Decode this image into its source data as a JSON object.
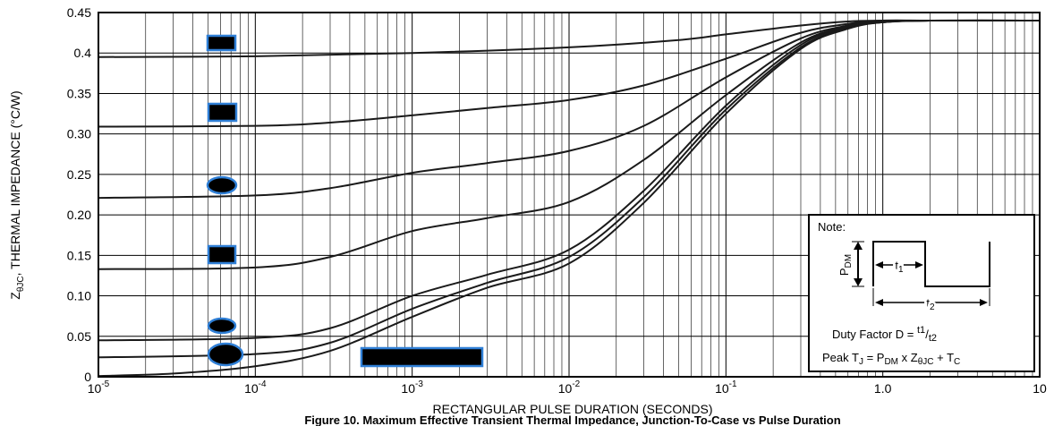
{
  "chart_data": {
    "type": "line",
    "title": "",
    "xlabel": "RECTANGULAR PULSE DURATION (SECONDS)",
    "ylabel": {
      "main": "Z",
      "sub": "θJC",
      "rest": ", THERMAL IMPEDANCE (°C/W)"
    },
    "x_scale": "log",
    "xlim": [
      1e-05,
      10
    ],
    "ylim": [
      0,
      0.45
    ],
    "grid": true,
    "x_ticks": [
      {
        "value": 1e-05,
        "base": "10",
        "exp": "-5"
      },
      {
        "value": 0.0001,
        "base": "10",
        "exp": "-4"
      },
      {
        "value": 0.001,
        "base": "10",
        "exp": "-3"
      },
      {
        "value": 0.01,
        "base": "10",
        "exp": "-2"
      },
      {
        "value": 0.1,
        "base": "10",
        "exp": "-1"
      },
      {
        "value": 1,
        "base": "1.0",
        "exp": ""
      },
      {
        "value": 10,
        "base": "10",
        "exp": ""
      }
    ],
    "y_ticks": [
      {
        "value": 0,
        "label": "0"
      },
      {
        "value": 0.05,
        "label": "0.05"
      },
      {
        "value": 0.1,
        "label": "0.10"
      },
      {
        "value": 0.15,
        "label": "0.15"
      },
      {
        "value": 0.2,
        "label": "0.20"
      },
      {
        "value": 0.25,
        "label": "0.25"
      },
      {
        "value": 0.3,
        "label": "0.30"
      },
      {
        "value": 0.35,
        "label": "0.35"
      },
      {
        "value": 0.4,
        "label": "0.4"
      },
      {
        "value": 0.45,
        "label": "0.45"
      }
    ],
    "series": [
      {
        "x": [
          1e-05,
          0.0001,
          0.001,
          0.01,
          0.05,
          0.1,
          0.3,
          0.6,
          1,
          2,
          10
        ],
        "y": [
          0.395,
          0.396,
          0.4,
          0.407,
          0.416,
          0.423,
          0.434,
          0.439,
          0.44,
          0.44,
          0.44
        ]
      },
      {
        "x": [
          1e-05,
          0.0001,
          0.0003,
          0.001,
          0.003,
          0.01,
          0.03,
          0.1,
          0.3,
          0.6,
          1,
          2,
          10
        ],
        "y": [
          0.309,
          0.31,
          0.314,
          0.323,
          0.332,
          0.342,
          0.36,
          0.393,
          0.425,
          0.436,
          0.44,
          0.44,
          0.44
        ]
      },
      {
        "x": [
          1e-05,
          0.0001,
          0.0003,
          0.001,
          0.003,
          0.01,
          0.03,
          0.1,
          0.3,
          0.6,
          1,
          2,
          10
        ],
        "y": [
          0.221,
          0.224,
          0.233,
          0.252,
          0.264,
          0.279,
          0.31,
          0.37,
          0.418,
          0.434,
          0.439,
          0.44,
          0.44
        ]
      },
      {
        "x": [
          1e-05,
          0.0001,
          0.0003,
          0.001,
          0.003,
          0.01,
          0.03,
          0.1,
          0.3,
          0.6,
          1,
          2,
          10
        ],
        "y": [
          0.133,
          0.135,
          0.148,
          0.18,
          0.196,
          0.216,
          0.268,
          0.348,
          0.413,
          0.433,
          0.439,
          0.44,
          0.44
        ]
      },
      {
        "x": [
          1e-05,
          0.0001,
          0.0003,
          0.001,
          0.003,
          0.01,
          0.03,
          0.1,
          0.3,
          0.6,
          1,
          2,
          10
        ],
        "y": [
          0.045,
          0.048,
          0.06,
          0.1,
          0.126,
          0.157,
          0.23,
          0.335,
          0.41,
          0.432,
          0.438,
          0.44,
          0.44
        ]
      },
      {
        "x": [
          1e-05,
          0.0001,
          0.0003,
          0.001,
          0.003,
          0.01,
          0.03,
          0.1,
          0.3,
          0.6,
          1,
          2,
          10
        ],
        "y": [
          0.024,
          0.028,
          0.042,
          0.084,
          0.116,
          0.148,
          0.222,
          0.33,
          0.407,
          0.431,
          0.438,
          0.44,
          0.44
        ]
      },
      {
        "x": [
          1e-05,
          3e-05,
          0.0001,
          0.0003,
          0.001,
          0.003,
          0.01,
          0.03,
          0.1,
          0.3,
          0.6,
          1,
          2,
          10
        ],
        "y": [
          0.001,
          0.004,
          0.013,
          0.032,
          0.074,
          0.11,
          0.14,
          0.215,
          0.325,
          0.405,
          0.43,
          0.438,
          0.44,
          0.44
        ]
      }
    ],
    "annotations": {
      "note": {
        "title": "Note:",
        "pdm_main": "P",
        "pdm_sub": "DM",
        "t1_main": "t",
        "t1_sub": "1",
        "t2_main": "t",
        "t2_sub": "2",
        "duty_prefix": "Duty Factor  D = ",
        "duty_num": "t1",
        "duty_den": "t2",
        "peak_prefix": "Peak T",
        "peak_sub1": "J",
        "peak_mid1": " = P",
        "peak_sub2": "DM",
        "peak_mid2": " x Z",
        "peak_sub3": "θJC",
        "peak_mid3": " + T",
        "peak_sub4": "C"
      },
      "caption": "Figure 10. Maximum Effective Transient Thermal Impedance, Junction-To-Case vs Pulse Duration"
    },
    "colors": {
      "line": "#1a1a1a",
      "grid": "#000000",
      "marker_fill": "#000000",
      "marker_stroke": "#2f7fd6"
    }
  }
}
